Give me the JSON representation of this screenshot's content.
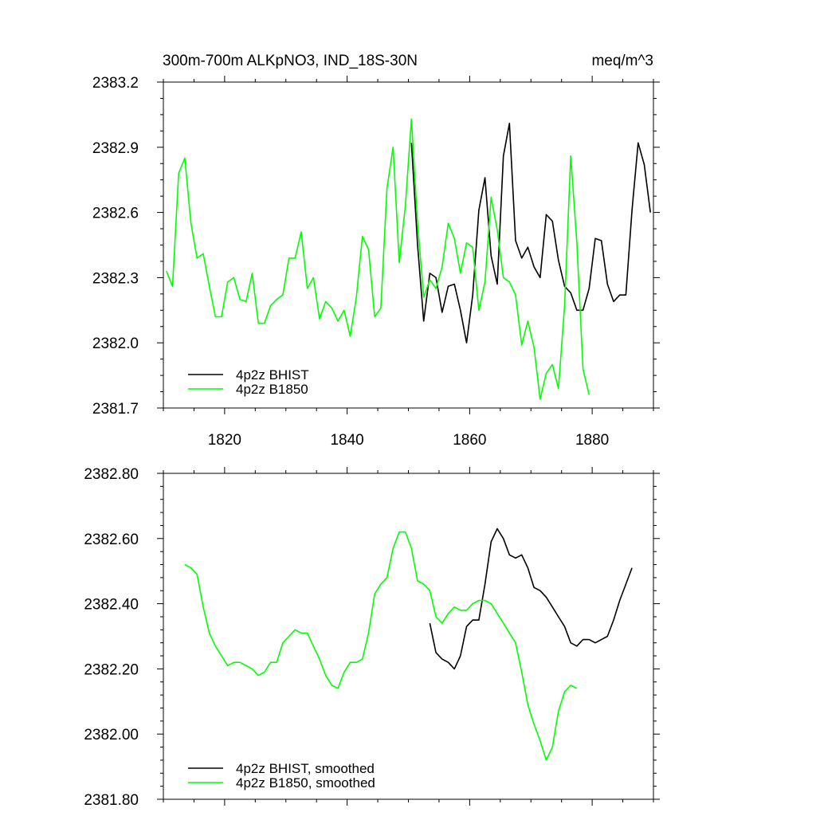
{
  "colors": {
    "bhist": "#000000",
    "b1850": "#00ff00",
    "axis": "#000000"
  },
  "chart_data": [
    {
      "type": "line",
      "title": "300m-700m ALKpNO3, IND_18S-30N",
      "units": "meq/m^3",
      "xlim": [
        1810,
        1890
      ],
      "ylim": [
        2381.7,
        2383.2
      ],
      "xticks": [
        1820,
        1840,
        1860,
        1880
      ],
      "xtick_labels": [
        "1820",
        "1840",
        "1860",
        "1880"
      ],
      "yticks": [
        2381.7,
        2382.0,
        2382.3,
        2382.6,
        2382.9,
        2383.2
      ],
      "ytick_labels": [
        "2381.7",
        "2382.0",
        "2382.3",
        "2382.6",
        "2382.9",
        "2383.2"
      ],
      "legend_position": "bottom-left",
      "series": [
        {
          "name": "4p2z BHIST",
          "color": "#000000",
          "x_start": 1850.5,
          "values": [
            2382.92,
            2382.45,
            2382.1,
            2382.32,
            2382.3,
            2382.14,
            2382.26,
            2382.27,
            2382.15,
            2382.0,
            2382.22,
            2382.61,
            2382.76,
            2382.4,
            2382.27,
            2382.86,
            2383.01,
            2382.47,
            2382.39,
            2382.44,
            2382.35,
            2382.3,
            2382.59,
            2382.56,
            2382.38,
            2382.26,
            2382.23,
            2382.15,
            2382.15,
            2382.25,
            2382.48,
            2382.47,
            2382.27,
            2382.19,
            2382.22,
            2382.22,
            2382.61,
            2382.92,
            2382.82,
            2382.6
          ]
        },
        {
          "name": "4p2z B1850",
          "color": "#00ff00",
          "x_start": 1810.5,
          "values": [
            2382.33,
            2382.26,
            2382.78,
            2382.85,
            2382.55,
            2382.39,
            2382.41,
            2382.26,
            2382.12,
            2382.12,
            2382.28,
            2382.3,
            2382.2,
            2382.19,
            2382.32,
            2382.09,
            2382.09,
            2382.17,
            2382.2,
            2382.22,
            2382.39,
            2382.39,
            2382.51,
            2382.25,
            2382.3,
            2382.11,
            2382.19,
            2382.16,
            2382.1,
            2382.15,
            2382.03,
            2382.21,
            2382.49,
            2382.43,
            2382.12,
            2382.16,
            2382.71,
            2382.9,
            2382.37,
            2382.63,
            2383.03,
            2382.55,
            2382.21,
            2382.29,
            2382.25,
            2382.35,
            2382.55,
            2382.48,
            2382.32,
            2382.46,
            2382.44,
            2382.15,
            2382.28,
            2382.67,
            2382.52,
            2382.3,
            2382.28,
            2382.22,
            2381.99,
            2382.1,
            2381.98,
            2381.74,
            2381.86,
            2381.9,
            2381.79,
            2382.17,
            2382.86,
            2382.46,
            2381.88,
            2381.76
          ]
        }
      ]
    },
    {
      "type": "line",
      "xlim": [
        1810,
        1890
      ],
      "ylim": [
        2381.8,
        2382.8
      ],
      "xticks": [
        1820,
        1840,
        1860,
        1880
      ],
      "yticks": [
        2381.8,
        2382.0,
        2382.2,
        2382.4,
        2382.6,
        2382.8
      ],
      "ytick_labels": [
        "2381.80",
        "2382.00",
        "2382.20",
        "2382.40",
        "2382.60",
        "2382.80"
      ],
      "legend_position": "bottom-left",
      "series": [
        {
          "name": "4p2z BHIST, smoothed",
          "color": "#000000",
          "x_start": 1853.5,
          "values": [
            2382.34,
            2382.25,
            2382.23,
            2382.22,
            2382.2,
            2382.24,
            2382.33,
            2382.35,
            2382.35,
            2382.46,
            2382.59,
            2382.63,
            2382.6,
            2382.55,
            2382.54,
            2382.55,
            2382.51,
            2382.45,
            2382.44,
            2382.42,
            2382.39,
            2382.36,
            2382.33,
            2382.28,
            2382.27,
            2382.29,
            2382.29,
            2382.28,
            2382.29,
            2382.3,
            2382.35,
            2382.41,
            2382.46,
            2382.51
          ]
        },
        {
          "name": "4p2z B1850, smoothed",
          "color": "#00ff00",
          "x_start": 1813.5,
          "values": [
            2382.52,
            2382.51,
            2382.49,
            2382.39,
            2382.31,
            2382.27,
            2382.24,
            2382.21,
            2382.22,
            2382.22,
            2382.21,
            2382.2,
            2382.18,
            2382.19,
            2382.22,
            2382.22,
            2382.28,
            2382.3,
            2382.32,
            2382.31,
            2382.31,
            2382.27,
            2382.23,
            2382.18,
            2382.15,
            2382.14,
            2382.19,
            2382.22,
            2382.22,
            2382.23,
            2382.31,
            2382.43,
            2382.46,
            2382.48,
            2382.57,
            2382.62,
            2382.62,
            2382.57,
            2382.47,
            2382.46,
            2382.44,
            2382.36,
            2382.34,
            2382.37,
            2382.39,
            2382.38,
            2382.38,
            2382.4,
            2382.41,
            2382.41,
            2382.4,
            2382.37,
            2382.34,
            2382.31,
            2382.28,
            2382.19,
            2382.09,
            2382.03,
            2381.98,
            2381.92,
            2381.96,
            2382.07,
            2382.13,
            2382.15,
            2382.14
          ]
        }
      ]
    }
  ]
}
